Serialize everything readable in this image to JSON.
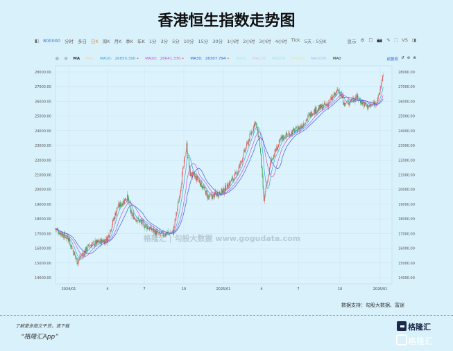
{
  "title": "香港恒生指数走势图",
  "toolbar": {
    "code": "800000",
    "items": [
      "分时",
      "多日",
      "日K",
      "周K",
      "月K",
      "季K",
      "年K",
      "1分",
      "3分",
      "5分",
      "10分",
      "15分",
      "30分",
      "1小时",
      "2小时",
      "3小时",
      "4小时",
      "Tick",
      "5天 : 5分K"
    ],
    "active": "日K",
    "display": "显示",
    "vs": "VS"
  },
  "ma_legend": {
    "selector": "MA",
    "items": [
      {
        "label": "MA5",
        "value": "",
        "color": "#f0d9a8"
      },
      {
        "label": "MA10:",
        "value": "26850.390",
        "color": "#2aa6e0"
      },
      {
        "label": "MA20:",
        "value": "26641.370",
        "color": "#c94fd0"
      },
      {
        "label": "MA30:",
        "value": "26307.794",
        "color": "#2f5fe0"
      },
      {
        "label": "MA60",
        "value": "",
        "color": "#b8e8d8"
      },
      {
        "label": "MA120",
        "value": "",
        "color": "#f3b8c8"
      },
      {
        "label": "MA250",
        "value": "",
        "color": "#9ee6f0"
      },
      {
        "label": "MA500",
        "value": "",
        "color": "#e6e6a0"
      },
      {
        "label": "MA1000",
        "value": "",
        "color": "#b8b8f0"
      },
      {
        "label": "MA0",
        "value": "",
        "color": "#333333"
      }
    ],
    "adjust": "前复权"
  },
  "chart_data": {
    "type": "candlestick",
    "y_ticks": [
      "28000.00",
      "27000.00",
      "26000.00",
      "25000.00",
      "24000.00",
      "23000.00",
      "22000.00",
      "21000.00",
      "20000.00",
      "19000.00",
      "18000.00",
      "17000.00",
      "16000.00",
      "15000.00",
      "14000.00"
    ],
    "ylim": [
      14000,
      28000
    ],
    "x_ticks": [
      "2024/01",
      "4",
      "7",
      "10",
      "2025/01",
      "4",
      "7",
      "10",
      "2026/01"
    ],
    "close_trend": [
      [
        "2023-12-01",
        17330
      ],
      [
        "2024-01-02",
        16630
      ],
      [
        "2024-01-22",
        15100
      ],
      [
        "2024-02-20",
        16200
      ],
      [
        "2024-04-02",
        16600
      ],
      [
        "2024-04-26",
        18750
      ],
      [
        "2024-05-20",
        19500
      ],
      [
        "2024-05-29",
        18300
      ],
      [
        "2024-06-28",
        17600
      ],
      [
        "2024-08-05",
        16900
      ],
      [
        "2024-09-05",
        17100
      ],
      [
        "2024-09-18",
        19200
      ],
      [
        "2024-10-07",
        23000
      ],
      [
        "2024-10-15",
        21100
      ],
      [
        "2024-11-05",
        20650
      ],
      [
        "2024-11-28",
        19450
      ],
      [
        "2025-01-02",
        19900
      ],
      [
        "2025-02-03",
        21100
      ],
      [
        "2025-03-18",
        24600
      ],
      [
        "2025-03-28",
        23400
      ],
      [
        "2025-04-08",
        19250
      ],
      [
        "2025-04-25",
        22000
      ],
      [
        "2025-05-20",
        23500
      ],
      [
        "2025-07-02",
        24200
      ],
      [
        "2025-08-01",
        25300
      ],
      [
        "2025-09-05",
        25800
      ],
      [
        "2025-10-02",
        26800
      ],
      [
        "2025-10-16",
        25800
      ],
      [
        "2025-11-12",
        26300
      ],
      [
        "2025-12-10",
        25600
      ],
      [
        "2026-01-02",
        26050
      ],
      [
        "2026-01-15",
        27800
      ]
    ],
    "grid": true,
    "watermark": "格隆汇 | 勾股大数据 www.gogudata.com"
  },
  "source": "数据支持：勾股大数据、富途",
  "footer": {
    "tip": "了解更多图文干货，请下载",
    "app": "“格隆汇App”",
    "logo": "格隆汇"
  }
}
